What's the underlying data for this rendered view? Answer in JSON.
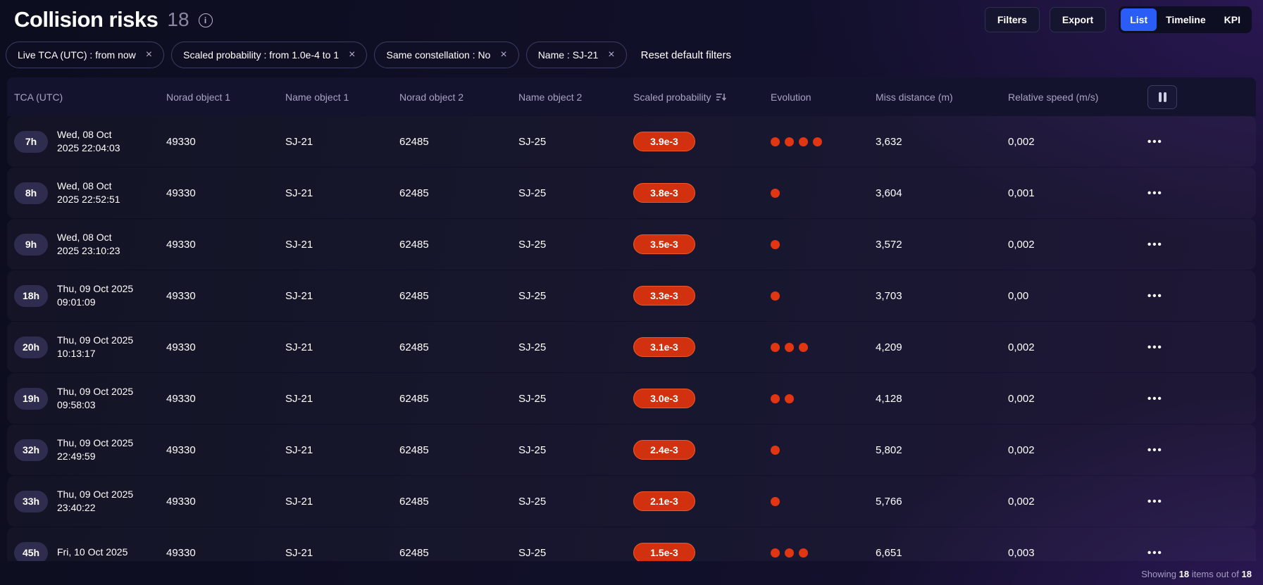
{
  "page": {
    "title": "Collision risks",
    "count": "18"
  },
  "toolbar": {
    "filters_label": "Filters",
    "export_label": "Export",
    "views": [
      {
        "label": "List",
        "active": true
      },
      {
        "label": "Timeline",
        "active": false
      },
      {
        "label": "KPI",
        "active": false
      }
    ]
  },
  "filter_bar": {
    "chips": [
      "Live TCA (UTC) : from now",
      "Scaled probability : from 1.0e-4 to 1",
      "Same constellation : No",
      "Name : SJ-21"
    ],
    "reset_label": "Reset default filters"
  },
  "icons": {
    "info": "i",
    "close": "×",
    "more": "•••"
  },
  "colors": {
    "accent_blue": "#2a5df5",
    "risk_red": "#d23110",
    "dot_red": "#e23511"
  },
  "table": {
    "columns": [
      "TCA (UTC)",
      "Norad object 1",
      "Name object 1",
      "Norad object 2",
      "Name object 2",
      "Scaled probability",
      "Evolution",
      "Miss distance (m)",
      "Relative speed (m/s)"
    ],
    "rows": [
      {
        "badge": "7h",
        "date_line1": "Wed, 08 Oct",
        "date_line2": "2025 22:04:03",
        "norad1": "49330",
        "name1": "SJ-21",
        "norad2": "62485",
        "name2": "SJ-25",
        "probability": "3.9e-3",
        "evolution_dots": 4,
        "miss_distance": "3,632",
        "relative_speed": "0,002"
      },
      {
        "badge": "8h",
        "date_line1": "Wed, 08 Oct",
        "date_line2": "2025 22:52:51",
        "norad1": "49330",
        "name1": "SJ-21",
        "norad2": "62485",
        "name2": "SJ-25",
        "probability": "3.8e-3",
        "evolution_dots": 1,
        "miss_distance": "3,604",
        "relative_speed": "0,001"
      },
      {
        "badge": "9h",
        "date_line1": "Wed, 08 Oct",
        "date_line2": "2025 23:10:23",
        "norad1": "49330",
        "name1": "SJ-21",
        "norad2": "62485",
        "name2": "SJ-25",
        "probability": "3.5e-3",
        "evolution_dots": 1,
        "miss_distance": "3,572",
        "relative_speed": "0,002"
      },
      {
        "badge": "18h",
        "date_line1": "Thu, 09 Oct 2025",
        "date_line2": "09:01:09",
        "norad1": "49330",
        "name1": "SJ-21",
        "norad2": "62485",
        "name2": "SJ-25",
        "probability": "3.3e-3",
        "evolution_dots": 1,
        "miss_distance": "3,703",
        "relative_speed": "0,00"
      },
      {
        "badge": "20h",
        "date_line1": "Thu, 09 Oct 2025",
        "date_line2": "10:13:17",
        "norad1": "49330",
        "name1": "SJ-21",
        "norad2": "62485",
        "name2": "SJ-25",
        "probability": "3.1e-3",
        "evolution_dots": 3,
        "miss_distance": "4,209",
        "relative_speed": "0,002"
      },
      {
        "badge": "19h",
        "date_line1": "Thu, 09 Oct 2025",
        "date_line2": "09:58:03",
        "norad1": "49330",
        "name1": "SJ-21",
        "norad2": "62485",
        "name2": "SJ-25",
        "probability": "3.0e-3",
        "evolution_dots": 2,
        "miss_distance": "4,128",
        "relative_speed": "0,002"
      },
      {
        "badge": "32h",
        "date_line1": "Thu, 09 Oct 2025",
        "date_line2": "22:49:59",
        "norad1": "49330",
        "name1": "SJ-21",
        "norad2": "62485",
        "name2": "SJ-25",
        "probability": "2.4e-3",
        "evolution_dots": 1,
        "miss_distance": "5,802",
        "relative_speed": "0,002"
      },
      {
        "badge": "33h",
        "date_line1": "Thu, 09 Oct 2025",
        "date_line2": "23:40:22",
        "norad1": "49330",
        "name1": "SJ-21",
        "norad2": "62485",
        "name2": "SJ-25",
        "probability": "2.1e-3",
        "evolution_dots": 1,
        "miss_distance": "5,766",
        "relative_speed": "0,002"
      },
      {
        "badge": "45h",
        "date_line1": "Fri, 10 Oct 2025",
        "date_line2": "",
        "norad1": "49330",
        "name1": "SJ-21",
        "norad2": "62485",
        "name2": "SJ-25",
        "probability": "1.5e-3",
        "evolution_dots": 3,
        "miss_distance": "6,651",
        "relative_speed": "0,003"
      }
    ]
  },
  "footer": {
    "prefix": "Showing",
    "count": "18",
    "middle": "items out of",
    "total": "18"
  }
}
